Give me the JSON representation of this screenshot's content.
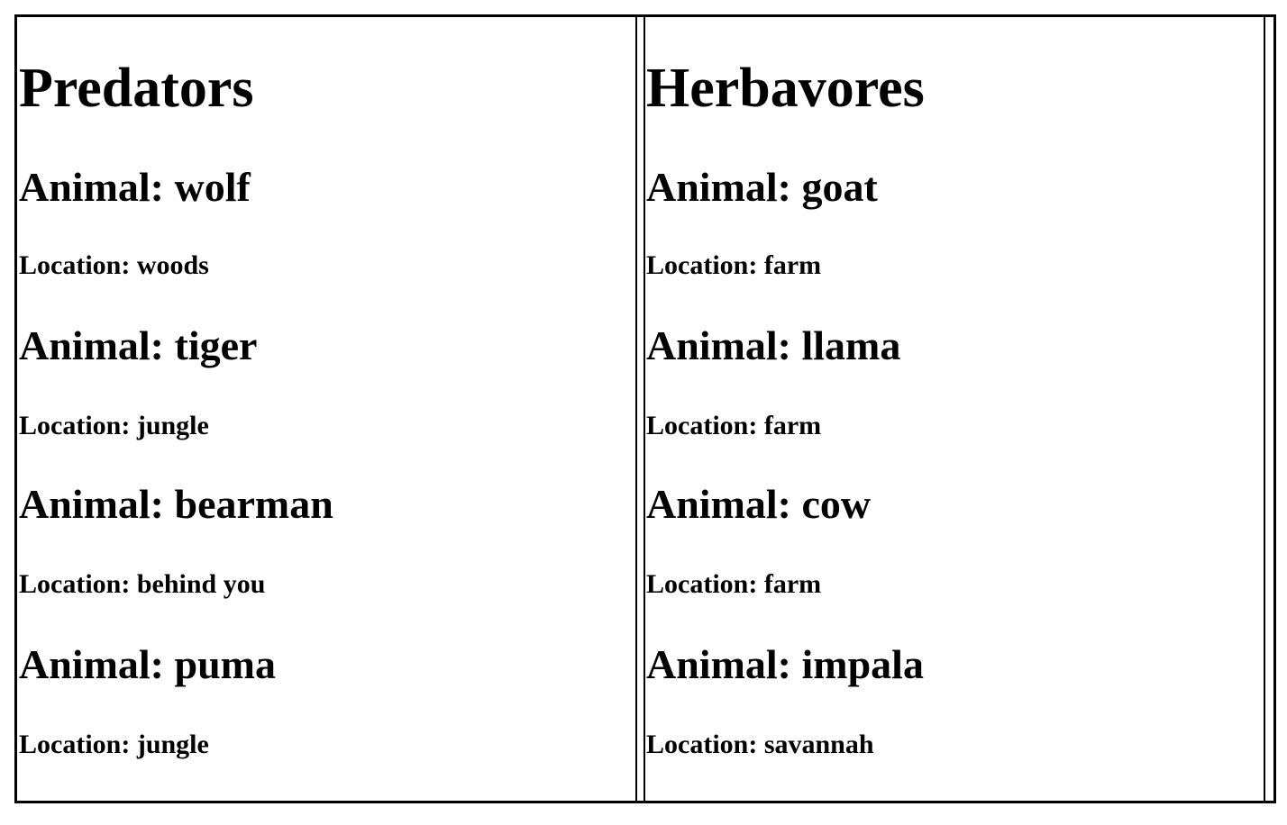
{
  "predators": {
    "title": "Predators",
    "animals": [
      {
        "animal": "Animal: wolf",
        "location": "Location: woods"
      },
      {
        "animal": "Animal: tiger",
        "location": "Location: jungle"
      },
      {
        "animal": "Animal: bearman",
        "location": "Location: behind you"
      },
      {
        "animal": "Animal: puma",
        "location": "Location: jungle"
      }
    ]
  },
  "herbivores": {
    "title": "Herbavores",
    "animals": [
      {
        "animal": "Animal: goat",
        "location": "Location: farm"
      },
      {
        "animal": "Animal: llama",
        "location": "Location: farm"
      },
      {
        "animal": "Animal: cow",
        "location": "Location: farm"
      },
      {
        "animal": "Animal: impala",
        "location": "Location: savannah"
      }
    ]
  }
}
